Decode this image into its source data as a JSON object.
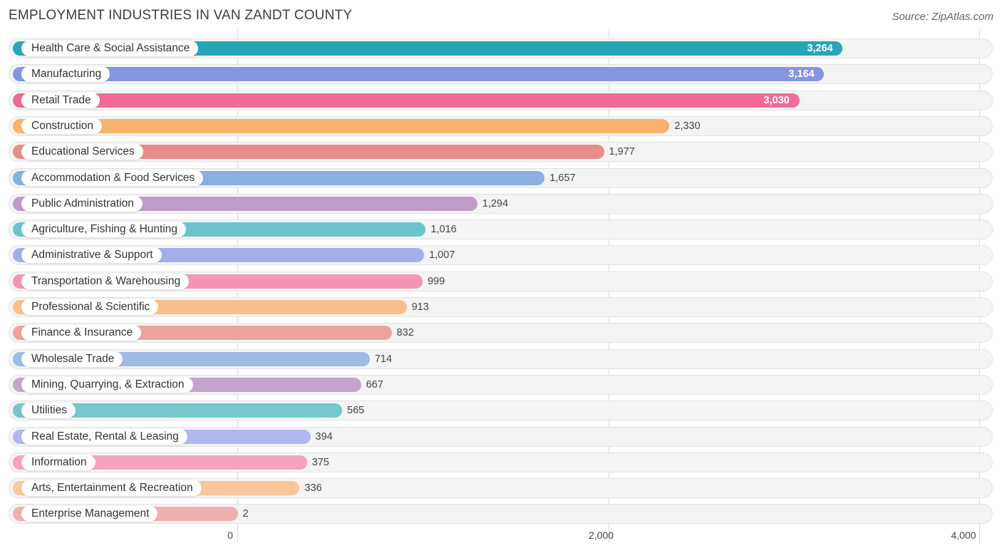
{
  "chart_data": {
    "type": "bar",
    "orientation": "horizontal",
    "title": "EMPLOYMENT INDUSTRIES IN VAN ZANDT COUNTY",
    "source": "Source: ZipAtlas.com",
    "xlim": [
      0,
      4000
    ],
    "ticks": [
      {
        "value": 0,
        "label": "0"
      },
      {
        "value": 2000,
        "label": "2,000"
      },
      {
        "value": 4000,
        "label": "4,000"
      }
    ],
    "categories": [
      "Health Care & Social Assistance",
      "Manufacturing",
      "Retail Trade",
      "Construction",
      "Educational Services",
      "Accommodation & Food Services",
      "Public Administration",
      "Agriculture, Fishing & Hunting",
      "Administrative & Support",
      "Transportation & Warehousing",
      "Professional & Scientific",
      "Finance & Insurance",
      "Wholesale Trade",
      "Mining, Quarrying, & Extraction",
      "Utilities",
      "Real Estate, Rental & Leasing",
      "Information",
      "Arts, Entertainment & Recreation",
      "Enterprise Management"
    ],
    "values": [
      3264,
      3164,
      3030,
      2330,
      1977,
      1657,
      1294,
      1016,
      1007,
      999,
      913,
      832,
      714,
      667,
      565,
      394,
      375,
      336,
      2
    ],
    "value_labels": [
      "3,264",
      "3,164",
      "3,030",
      "2,330",
      "1,977",
      "1,657",
      "1,294",
      "1,016",
      "1,007",
      "999",
      "913",
      "832",
      "714",
      "667",
      "565",
      "394",
      "375",
      "336",
      "2"
    ],
    "colors": [
      "#26a6b5",
      "#8595e0",
      "#f06c96",
      "#f7b26e",
      "#e88d8a",
      "#89afe3",
      "#bf9bc7",
      "#6cc4cb",
      "#a5aee8",
      "#f395b3",
      "#f7c08a",
      "#eea3a1",
      "#9cbde7",
      "#c4a4cc",
      "#73c8cc",
      "#b0b8ec",
      "#f4a3be",
      "#f9c898",
      "#f0b0b0"
    ]
  }
}
